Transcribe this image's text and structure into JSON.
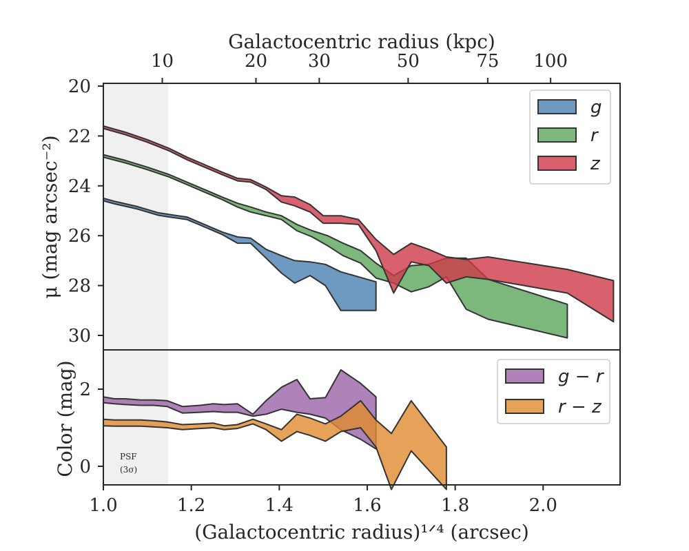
{
  "chart_data": [
    {
      "type": "area",
      "panel": "top",
      "xlabel_top": "Galactocentric radius (kpc)",
      "ylabel": "μ (mag arcsec⁻²)",
      "xlim": [
        1.0,
        2.175
      ],
      "ylim": [
        30.5,
        19.9
      ],
      "y_inverted": true,
      "yticks": [
        20,
        22,
        24,
        26,
        28,
        30
      ],
      "top_ticks": [
        {
          "label": "10",
          "x": 1.134
        },
        {
          "label": "20",
          "x": 1.347
        },
        {
          "label": "30",
          "x": 1.491
        },
        {
          "label": "50",
          "x": 1.693
        },
        {
          "label": "75",
          "x": 1.874
        },
        {
          "label": "100",
          "x": 2.017
        }
      ],
      "shaded_region": {
        "label": "PSF (3σ)",
        "x": [
          1.0,
          1.147
        ]
      },
      "legend_position": "upper right",
      "series": [
        {
          "name": "g",
          "color": "#4a7fb0",
          "x": [
            1.0,
            1.025,
            1.05,
            1.075,
            1.1,
            1.125,
            1.15,
            1.19,
            1.23,
            1.27,
            1.305,
            1.335,
            1.37,
            1.405,
            1.435,
            1.47,
            1.505,
            1.54,
            1.58,
            1.62
          ],
          "y_upper": [
            24.5,
            24.62,
            24.72,
            24.82,
            24.95,
            25.08,
            25.15,
            25.25,
            25.55,
            25.85,
            26.05,
            26.1,
            26.55,
            26.8,
            27.0,
            27.05,
            27.15,
            27.45,
            27.65,
            27.85
          ],
          "y_lower": [
            24.6,
            24.72,
            24.82,
            24.92,
            25.05,
            25.18,
            25.25,
            25.35,
            25.65,
            25.95,
            26.3,
            26.3,
            26.9,
            27.5,
            27.9,
            27.6,
            28.0,
            29.0,
            29.0,
            29.0
          ]
        },
        {
          "name": "r",
          "color": "#5ba55b",
          "x": [
            1.0,
            1.05,
            1.1,
            1.15,
            1.19,
            1.23,
            1.27,
            1.305,
            1.335,
            1.37,
            1.405,
            1.44,
            1.475,
            1.51,
            1.545,
            1.585,
            1.62,
            1.66,
            1.7,
            1.74,
            1.78,
            1.825,
            1.875,
            2.055
          ],
          "y_upper": [
            22.75,
            22.98,
            23.25,
            23.55,
            23.85,
            24.15,
            24.45,
            24.7,
            24.85,
            25.05,
            25.2,
            25.55,
            25.8,
            26.0,
            26.3,
            26.6,
            27.1,
            27.6,
            27.2,
            27.15,
            26.9,
            26.9,
            27.75,
            28.75
          ],
          "y_lower": [
            22.85,
            23.08,
            23.35,
            23.65,
            23.95,
            24.25,
            24.55,
            24.85,
            25.05,
            25.2,
            25.35,
            25.8,
            26.05,
            26.4,
            26.8,
            27.1,
            27.7,
            27.9,
            28.25,
            28.05,
            27.65,
            28.95,
            29.35,
            30.1
          ]
        },
        {
          "name": "z",
          "color": "#d03a48",
          "x": [
            1.0,
            1.05,
            1.1,
            1.15,
            1.19,
            1.23,
            1.27,
            1.305,
            1.335,
            1.37,
            1.405,
            1.435,
            1.47,
            1.5,
            1.54,
            1.58,
            1.62,
            1.66,
            1.7,
            1.74,
            1.78,
            1.825,
            1.875,
            2.055,
            2.16
          ],
          "y_upper": [
            21.6,
            21.85,
            22.15,
            22.5,
            22.85,
            23.15,
            23.45,
            23.7,
            23.75,
            24.05,
            24.4,
            24.45,
            24.75,
            25.2,
            25.2,
            25.35,
            26.15,
            26.75,
            26.3,
            26.55,
            26.85,
            26.95,
            26.85,
            27.35,
            27.8
          ],
          "y_lower": [
            21.7,
            21.95,
            22.25,
            22.6,
            22.95,
            23.25,
            23.55,
            23.8,
            23.85,
            24.15,
            24.65,
            24.8,
            25.05,
            25.5,
            25.5,
            25.55,
            26.6,
            28.3,
            27.05,
            27.2,
            27.9,
            27.65,
            27.75,
            28.3,
            29.45
          ]
        }
      ]
    },
    {
      "type": "area",
      "panel": "bottom",
      "xlabel": "(Galactocentric radius)¹ᐟ⁴ (arcsec)",
      "ylabel": "Color (mag)",
      "xlim": [
        1.0,
        2.175
      ],
      "ylim": [
        -0.5,
        3.0
      ],
      "xticks": [
        "1.0",
        "1.2",
        "1.4",
        "1.6",
        "1.8",
        "2.0"
      ],
      "yticks": [
        0,
        2
      ],
      "legend_position": "upper right",
      "series": [
        {
          "name": "g − r",
          "color": "#9b64a8",
          "x": [
            1.0,
            1.025,
            1.05,
            1.085,
            1.115,
            1.145,
            1.18,
            1.22,
            1.25,
            1.275,
            1.305,
            1.34,
            1.37,
            1.405,
            1.44,
            1.47,
            1.505,
            1.54,
            1.585,
            1.62
          ],
          "y_upper": [
            1.8,
            1.75,
            1.75,
            1.72,
            1.72,
            1.7,
            1.55,
            1.58,
            1.62,
            1.6,
            1.62,
            1.35,
            1.7,
            2.05,
            2.25,
            1.75,
            1.78,
            2.5,
            2.15,
            1.8
          ],
          "y_lower": [
            1.65,
            1.62,
            1.6,
            1.58,
            1.58,
            1.55,
            1.38,
            1.4,
            1.42,
            1.4,
            1.4,
            1.3,
            1.35,
            1.48,
            1.4,
            1.35,
            1.25,
            0.95,
            0.7,
            0.45
          ]
        },
        {
          "name": "r − z",
          "color": "#e18b2f",
          "x": [
            1.0,
            1.025,
            1.05,
            1.085,
            1.115,
            1.145,
            1.18,
            1.22,
            1.25,
            1.275,
            1.305,
            1.34,
            1.37,
            1.405,
            1.44,
            1.47,
            1.505,
            1.54,
            1.585,
            1.62,
            1.655,
            1.7,
            1.74,
            1.78
          ],
          "y_upper": [
            1.22,
            1.2,
            1.2,
            1.2,
            1.18,
            1.15,
            1.08,
            1.1,
            1.12,
            1.05,
            1.08,
            1.22,
            1.1,
            0.95,
            1.35,
            1.25,
            1.1,
            1.3,
            1.7,
            1.2,
            0.85,
            1.7,
            1.1,
            0.5
          ],
          "y_lower": [
            1.05,
            1.04,
            1.04,
            1.04,
            1.02,
            1.0,
            0.95,
            0.98,
            1.0,
            0.95,
            0.98,
            1.1,
            0.95,
            0.65,
            0.9,
            0.8,
            0.65,
            0.9,
            1.0,
            0.5,
            -0.6,
            0.4,
            -0.1,
            -0.6
          ]
        }
      ]
    }
  ],
  "psf_label": "PSF",
  "psf_sigma": "(3σ)"
}
